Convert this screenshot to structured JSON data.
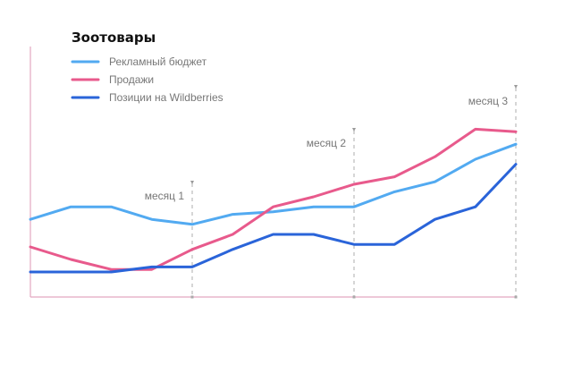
{
  "chart_data": {
    "type": "line",
    "title": "Зоотовары",
    "xlabel": "",
    "ylabel": "",
    "x": [
      0,
      1,
      2,
      3,
      4,
      5,
      6,
      7,
      8,
      9,
      10,
      11,
      12
    ],
    "ylim": [
      0,
      100
    ],
    "grid": false,
    "legend_position": "top-left",
    "series": [
      {
        "name": "Рекламный бюджет",
        "color": "#52aaf1",
        "values": [
          31,
          36,
          36,
          31,
          29,
          33,
          34,
          36,
          36,
          42,
          46,
          55,
          61
        ]
      },
      {
        "name": "Продажи",
        "color": "#e85a8c",
        "values": [
          20,
          15,
          11,
          11,
          19,
          25,
          36,
          40,
          45,
          48,
          56,
          67,
          66
        ]
      },
      {
        "name": "Позиции на Wildberries",
        "color": "#2a64d9",
        "values": [
          10,
          10,
          10,
          12,
          12,
          19,
          25,
          25,
          21,
          21,
          31,
          36,
          53
        ]
      }
    ],
    "annotations": [
      {
        "label": "месяц 1",
        "x": 4
      },
      {
        "label": "месяц 2",
        "x": 8
      },
      {
        "label": "месяц 3",
        "x": 12
      }
    ],
    "colors": {
      "y_axis": "#e3a7c0",
      "x_axis": "#e3a7c0",
      "marker_line": "#bbbbbb",
      "text": "#777777",
      "title": "#111111"
    }
  }
}
